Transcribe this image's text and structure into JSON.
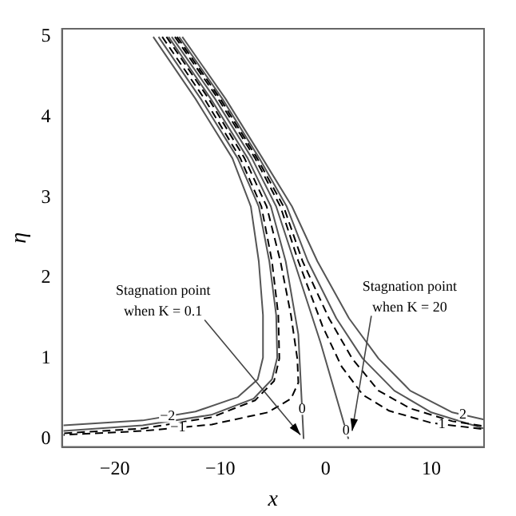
{
  "chart_data": {
    "type": "line",
    "xlabel": "x",
    "ylabel": "η",
    "xlim": [
      -25,
      15
    ],
    "ylim": [
      -0.1,
      5.1
    ],
    "xticks": [
      -20,
      -10,
      0,
      10
    ],
    "yticks": [
      0,
      1,
      2,
      3,
      4,
      5
    ],
    "grid": false,
    "legend": false,
    "marker": "none",
    "series": [
      {
        "color": "#555555",
        "line_style": "solid",
        "x": [
          -16.35,
          -12.35,
          -8.85,
          -7.1,
          -6.35,
          -5.95,
          -5.95,
          -6.45,
          -8.35,
          -12.35,
          -17.35,
          -24.85
        ],
        "values": [
          5.0,
          4.23,
          3.49,
          2.89,
          2.21,
          1.54,
          1.01,
          0.74,
          0.52,
          0.34,
          0.23,
          0.17
        ]
      },
      {
        "color": "#555555",
        "line_style": "solid",
        "x": [
          -15.85,
          -11.85,
          -8.35,
          -6.35,
          -5.35,
          -4.7,
          -4.6,
          -5.1,
          -6.85,
          -10.85,
          -17.35,
          -24.85
        ],
        "values": [
          5.0,
          4.23,
          3.49,
          2.89,
          2.21,
          1.54,
          1.01,
          0.74,
          0.5,
          0.3,
          0.17,
          0.1
        ]
      },
      {
        "color": "#000000",
        "line_style": "dashed",
        "x": [
          -15.5,
          -11.5,
          -8.1,
          -6.1,
          -5.1,
          -4.5,
          -4.4,
          -4.9,
          -6.7,
          -10.8,
          -17.3,
          -24.85
        ],
        "values": [
          5.0,
          4.23,
          3.49,
          2.89,
          2.21,
          1.54,
          1.0,
          0.72,
          0.48,
          0.27,
          0.13,
          0.07
        ]
      },
      {
        "color": "#000000",
        "line_style": "dashed",
        "x": [
          -15.1,
          -11.1,
          -7.7,
          -5.6,
          -4.3,
          -3.3,
          -2.7,
          -2.6,
          -3.3,
          -5.5,
          -10.8,
          -17.3,
          -24.85
        ],
        "values": [
          5.0,
          4.23,
          3.49,
          2.89,
          2.21,
          1.54,
          1.0,
          0.7,
          0.5,
          0.33,
          0.18,
          0.1,
          0.05
        ]
      },
      {
        "color": "#555555",
        "line_style": "solid",
        "x": [
          -14.9,
          -10.9,
          -7.4,
          -5.2,
          -3.8,
          -2.6,
          -2.1
        ],
        "values": [
          5.0,
          4.23,
          3.49,
          2.89,
          2.21,
          1.3,
          0.0
        ]
      },
      {
        "color": "#555555",
        "line_style": "solid",
        "x": [
          -14.6,
          -10.5,
          -7.0,
          -4.7,
          -3.0,
          -0.5,
          2.15
        ],
        "values": [
          5.0,
          4.23,
          3.49,
          2.89,
          2.21,
          1.2,
          0.0
        ]
      },
      {
        "color": "#000000",
        "line_style": "dashed",
        "x": [
          -14.3,
          -10.2,
          -6.7,
          -4.3,
          -2.6,
          -0.3,
          1.5,
          3.5,
          6,
          10,
          15
        ],
        "values": [
          5.0,
          4.23,
          3.49,
          2.89,
          2.21,
          1.4,
          0.9,
          0.55,
          0.35,
          0.2,
          0.12
        ]
      },
      {
        "color": "#000000",
        "line_style": "dashed",
        "x": [
          -14.1,
          -10,
          -6.5,
          -4.0,
          -2.2,
          0.3,
          2.5,
          5,
          8,
          12,
          15
        ],
        "values": [
          5.0,
          4.23,
          3.49,
          2.89,
          2.21,
          1.5,
          1.0,
          0.6,
          0.38,
          0.22,
          0.16
        ]
      },
      {
        "color": "#555555",
        "line_style": "solid",
        "x": [
          -13.9,
          -9.8,
          -6.3,
          -3.7,
          -1.7,
          1,
          3.5,
          6.5,
          10,
          15
        ],
        "values": [
          5.0,
          4.23,
          3.49,
          2.89,
          2.21,
          1.5,
          1.0,
          0.6,
          0.33,
          0.13
        ]
      },
      {
        "color": "#555555",
        "line_style": "solid",
        "x": [
          -13.6,
          -9.5,
          -6.0,
          -3.2,
          -0.8,
          2.2,
          5,
          8,
          12,
          15
        ],
        "values": [
          5.0,
          4.23,
          3.49,
          2.89,
          2.21,
          1.5,
          1.0,
          0.6,
          0.33,
          0.24
        ]
      }
    ],
    "annotations": [
      {
        "text": "−2",
        "x": -15,
        "y": 0.28
      },
      {
        "text": "−1",
        "x": -14,
        "y": 0.14
      },
      {
        "text": "0",
        "x": -2.24,
        "y": 0.37
      },
      {
        "text": "0",
        "x": 1.93,
        "y": 0.1
      },
      {
        "text": "2",
        "x": 13,
        "y": 0.3
      },
      {
        "text": "1",
        "x": 11,
        "y": 0.184
      },
      {
        "text": "Stagnation point\nwhen K = 0.1",
        "x": -2.4,
        "y": 0.05
      },
      {
        "text": "Stagnation point\nwhen K = 20",
        "x": 2.5,
        "y": 0.1
      }
    ]
  }
}
